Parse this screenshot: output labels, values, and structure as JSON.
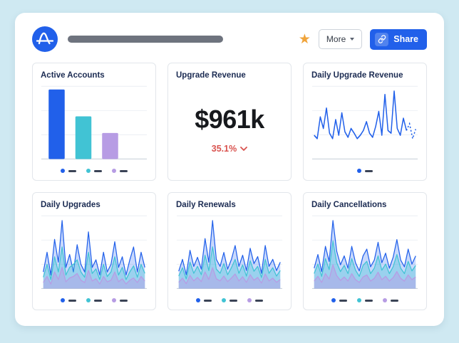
{
  "header": {
    "more_label": "More",
    "share_label": "Share",
    "star_icon": "★"
  },
  "colors": {
    "accent_blue": "#2160ea",
    "teal": "#41c3d4",
    "purple": "#b79ce4",
    "delta_red": "#d9534f",
    "star_orange": "#f0a43b",
    "title_navy": "#1b2b52"
  },
  "cards": [
    {
      "type": "bar",
      "title": "Active Accounts",
      "values": [
        88,
        54,
        33
      ],
      "colors": [
        "#2160ea",
        "#41c3d4",
        "#b79ce4"
      ],
      "legend": [
        "#2160ea",
        "#41c3d4",
        "#b79ce4"
      ]
    },
    {
      "type": "big_number",
      "title": "Upgrade Revenue",
      "value": "$961k",
      "delta": "35.1%"
    },
    {
      "type": "line",
      "title": "Daily Upgrade Revenue",
      "color": "#2160ea",
      "values": [
        35,
        30,
        62,
        45,
        75,
        38,
        30,
        58,
        35,
        68,
        40,
        32,
        45,
        38,
        30,
        35,
        42,
        55,
        38,
        32,
        48,
        70,
        35,
        95,
        42,
        38,
        100,
        45,
        35,
        60,
        42,
        52,
        30,
        44
      ],
      "legend": [
        "#2160ea"
      ]
    },
    {
      "type": "area",
      "title": "Daily Upgrades",
      "series": [
        {
          "name": "series-blue",
          "color": "#2160ea",
          "fill": "rgba(86,137,245,0.32)",
          "values": [
            22,
            48,
            18,
            65,
            35,
            90,
            28,
            45,
            22,
            58,
            32,
            22,
            75,
            28,
            38,
            18,
            48,
            22,
            32,
            62,
            28,
            42,
            18,
            38,
            55,
            22,
            48,
            28
          ]
        },
        {
          "name": "series-teal",
          "color": "#41c3d4",
          "fill": "rgba(65,195,212,0.35)",
          "values": [
            15,
            32,
            12,
            42,
            22,
            55,
            18,
            28,
            32,
            38,
            22,
            15,
            48,
            20,
            26,
            12,
            32,
            16,
            22,
            42,
            18,
            28,
            12,
            22,
            30,
            15,
            32,
            20
          ]
        },
        {
          "name": "series-purple",
          "color": "#b79ce4",
          "fill": "rgba(183,156,228,0.45)",
          "values": [
            8,
            16,
            6,
            22,
            12,
            28,
            9,
            14,
            16,
            20,
            11,
            8,
            24,
            10,
            13,
            6,
            16,
            9,
            11,
            22,
            9,
            13,
            6,
            11,
            14,
            8,
            16,
            10
          ]
        }
      ],
      "legend": [
        "#2160ea",
        "#41c3d4",
        "#b79ce4"
      ]
    },
    {
      "type": "area",
      "title": "Daily Renewals",
      "series": [
        {
          "name": "series-blue",
          "color": "#2160ea",
          "fill": "rgba(86,137,245,0.32)",
          "values": [
            25,
            42,
            20,
            55,
            32,
            45,
            28,
            72,
            38,
            98,
            42,
            32,
            52,
            28,
            42,
            62,
            32,
            48,
            26,
            58,
            36,
            46,
            22,
            62,
            32,
            42,
            26,
            38
          ]
        },
        {
          "name": "series-teal",
          "color": "#41c3d4",
          "fill": "rgba(65,195,212,0.35)",
          "values": [
            18,
            30,
            14,
            38,
            22,
            32,
            20,
            48,
            26,
            60,
            28,
            22,
            36,
            20,
            30,
            42,
            22,
            34,
            18,
            40,
            25,
            32,
            16,
            42,
            22,
            30,
            18,
            26
          ]
        },
        {
          "name": "series-purple",
          "color": "#b79ce4",
          "fill": "rgba(183,156,228,0.45)",
          "values": [
            9,
            15,
            7,
            19,
            11,
            16,
            10,
            24,
            13,
            30,
            14,
            11,
            18,
            10,
            15,
            21,
            11,
            17,
            9,
            20,
            12,
            16,
            8,
            21,
            11,
            15,
            9,
            13
          ]
        }
      ],
      "legend": [
        "#2160ea",
        "#41c3d4",
        "#b79ce4"
      ]
    },
    {
      "type": "area",
      "title": "Daily Cancellations",
      "series": [
        {
          "name": "series-blue",
          "color": "#2160ea",
          "fill": "rgba(86,137,245,0.32)",
          "values": [
            30,
            50,
            25,
            62,
            40,
            100,
            55,
            35,
            48,
            30,
            62,
            38,
            26,
            48,
            58,
            32,
            42,
            68,
            38,
            52,
            30,
            46,
            72,
            42,
            32,
            58,
            36,
            48
          ]
        },
        {
          "name": "series-teal",
          "color": "#41c3d4",
          "fill": "rgba(65,195,212,0.35)",
          "values": [
            22,
            36,
            18,
            44,
            28,
            70,
            38,
            25,
            34,
            22,
            44,
            27,
            18,
            34,
            40,
            22,
            30,
            48,
            27,
            36,
            22,
            32,
            50,
            30,
            22,
            40,
            26,
            34
          ]
        },
        {
          "name": "series-purple",
          "color": "#b79ce4",
          "fill": "rgba(183,156,228,0.45)",
          "values": [
            11,
            18,
            9,
            22,
            14,
            35,
            19,
            12,
            17,
            11,
            22,
            13,
            9,
            17,
            20,
            11,
            15,
            24,
            13,
            18,
            11,
            16,
            25,
            15,
            11,
            20,
            13,
            17
          ]
        }
      ],
      "legend": [
        "#2160ea",
        "#41c3d4",
        "#b79ce4"
      ]
    }
  ]
}
